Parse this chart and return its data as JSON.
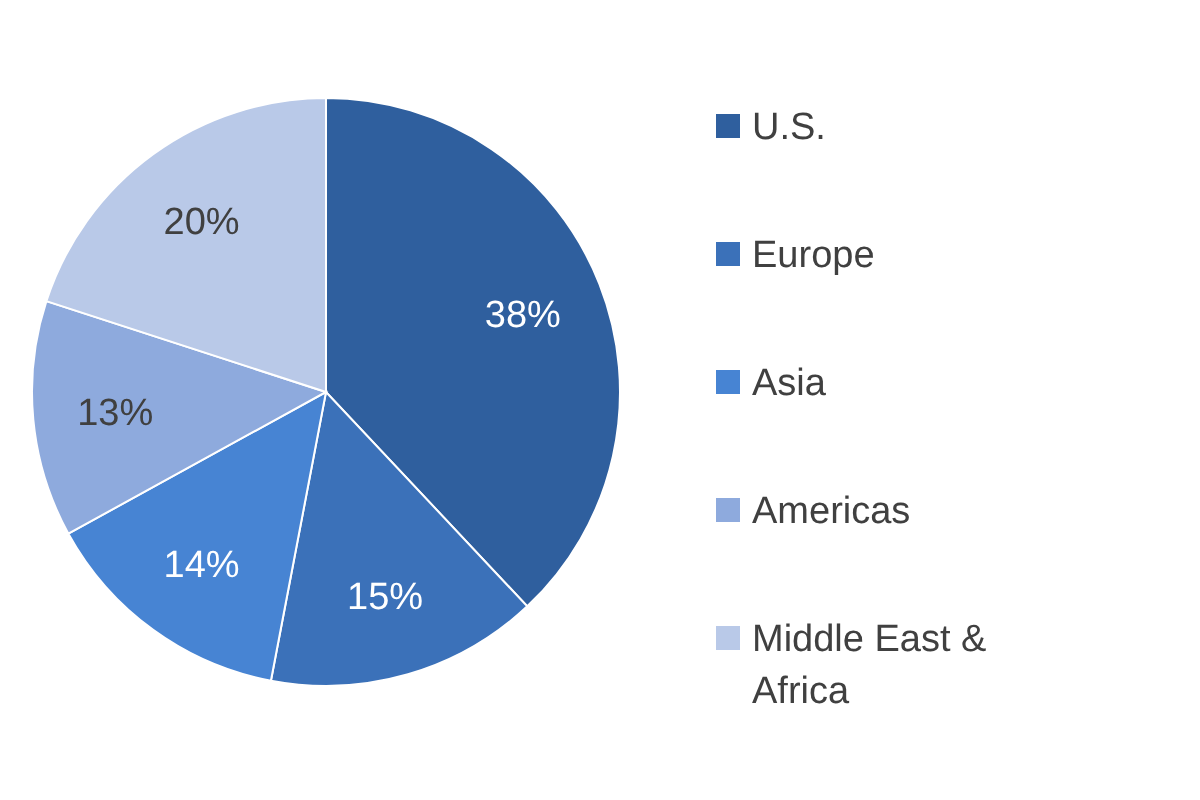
{
  "chart_data": {
    "type": "pie",
    "categories": [
      "U.S.",
      "Europe",
      "Asia",
      "Americas",
      "Middle East & Africa"
    ],
    "values": [
      38,
      15,
      14,
      13,
      20
    ],
    "colors": [
      "#2f5f9e",
      "#3b71b9",
      "#4784d3",
      "#8eaadd",
      "#b9c9e8"
    ],
    "value_labels": [
      "38%",
      "15%",
      "14%",
      "13%",
      "20%"
    ],
    "legend": "right"
  }
}
